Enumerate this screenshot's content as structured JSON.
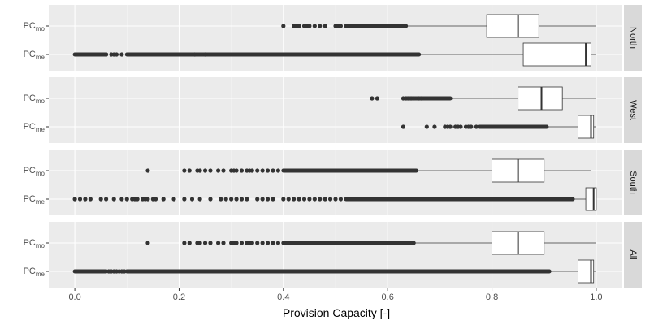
{
  "chart_data": {
    "type": "boxplot",
    "orientation": "horizontal",
    "title": "",
    "xlabel": "Provision Capacity [-]",
    "ylabel": "",
    "xlim": [
      -0.05,
      1.05
    ],
    "x_ticks": [
      0.0,
      0.2,
      0.4,
      0.6,
      0.8,
      1.0
    ],
    "x_tick_labels": [
      "0.0",
      "0.2",
      "0.4",
      "0.6",
      "0.8",
      "1.0"
    ],
    "grid": true,
    "colors": {
      "panel_bg": "#ebebeb",
      "grid_major": "#ffffff",
      "strip_bg": "#d9d9d9",
      "box_fill": "#ffffff",
      "box_stroke": "#333333",
      "outlier": "#333333"
    },
    "categories": [
      {
        "main": "PC",
        "sub": "mo"
      },
      {
        "main": "PC",
        "sub": "me"
      }
    ],
    "panels": [
      {
        "label": "North",
        "boxes": [
          {
            "name": "PC_mo",
            "q1": 0.79,
            "median": 0.85,
            "q3": 0.89,
            "whisker_low": 0.635,
            "whisker_high": 1.0,
            "outliers": [
              0.4,
              0.42,
              0.425,
              0.43,
              0.44,
              0.445,
              0.45,
              0.46,
              0.47,
              0.48,
              0.5,
              0.505,
              0.51
            ],
            "outlier_bands": [
              [
                0.52,
                0.635
              ]
            ]
          },
          {
            "name": "PC_me",
            "q1": 0.86,
            "median": 0.98,
            "q3": 0.99,
            "whisker_low": 0.66,
            "whisker_high": 1.0,
            "outliers": [
              0.06,
              0.07,
              0.075,
              0.08,
              0.09,
              0.23,
              0.25
            ],
            "outlier_bands": [
              [
                0.0,
                0.06
              ],
              [
                0.1,
                0.66
              ]
            ]
          }
        ]
      },
      {
        "label": "West",
        "boxes": [
          {
            "name": "PC_mo",
            "q1": 0.85,
            "median": 0.895,
            "q3": 0.935,
            "whisker_low": 0.72,
            "whisker_high": 1.0,
            "outliers": [
              0.57,
              0.58,
              0.63,
              0.635,
              0.64,
              0.645,
              0.65,
              0.66,
              0.665
            ],
            "outlier_bands": [
              [
                0.635,
                0.72
              ]
            ]
          },
          {
            "name": "PC_me",
            "q1": 0.965,
            "median": 0.99,
            "q3": 0.995,
            "whisker_low": 0.905,
            "whisker_high": 1.0,
            "outliers": [
              0.63,
              0.675,
              0.69,
              0.71,
              0.715,
              0.72,
              0.73,
              0.735,
              0.74,
              0.75,
              0.755,
              0.76,
              0.77
            ],
            "outlier_bands": [
              [
                0.775,
                0.905
              ]
            ]
          }
        ]
      },
      {
        "label": "South",
        "boxes": [
          {
            "name": "PC_mo",
            "q1": 0.8,
            "median": 0.85,
            "q3": 0.9,
            "whisker_low": 0.655,
            "whisker_high": 0.99,
            "outliers": [
              0.14,
              0.21,
              0.22,
              0.235,
              0.24,
              0.25,
              0.26,
              0.275,
              0.285,
              0.3,
              0.305,
              0.31,
              0.32,
              0.33,
              0.335,
              0.34,
              0.35,
              0.36,
              0.37,
              0.38,
              0.39
            ],
            "outlier_bands": [
              [
                0.4,
                0.655
              ]
            ]
          },
          {
            "name": "PC_me",
            "q1": 0.98,
            "median": 0.995,
            "q3": 1.0,
            "whisker_low": 0.955,
            "whisker_high": 1.0,
            "outliers": [
              0.0,
              0.01,
              0.02,
              0.03,
              0.05,
              0.06,
              0.075,
              0.09,
              0.1,
              0.11,
              0.115,
              0.12,
              0.13,
              0.135,
              0.14,
              0.15,
              0.155,
              0.17,
              0.19,
              0.21,
              0.225,
              0.24,
              0.26,
              0.28,
              0.29,
              0.3,
              0.31,
              0.32,
              0.33,
              0.35,
              0.36,
              0.37,
              0.38,
              0.4,
              0.41,
              0.42,
              0.43,
              0.44,
              0.45,
              0.46,
              0.47,
              0.48,
              0.49,
              0.5,
              0.51
            ],
            "outlier_bands": [
              [
                0.52,
                0.955
              ]
            ]
          }
        ]
      },
      {
        "label": "All",
        "boxes": [
          {
            "name": "PC_mo",
            "q1": 0.8,
            "median": 0.85,
            "q3": 0.9,
            "whisker_low": 0.65,
            "whisker_high": 1.0,
            "outliers": [
              0.14,
              0.21,
              0.22,
              0.235,
              0.24,
              0.25,
              0.26,
              0.275,
              0.285,
              0.3,
              0.305,
              0.31,
              0.32,
              0.33,
              0.335,
              0.34,
              0.35,
              0.36,
              0.37,
              0.38,
              0.39
            ],
            "outlier_bands": [
              [
                0.4,
                0.65
              ]
            ]
          },
          {
            "name": "PC_me",
            "q1": 0.965,
            "median": 0.99,
            "q3": 0.995,
            "whisker_low": 0.91,
            "whisker_high": 1.0,
            "outliers": [
              0.065,
              0.07,
              0.075,
              0.08,
              0.085,
              0.09,
              0.095
            ],
            "outlier_bands": [
              [
                0.0,
                0.06
              ],
              [
                0.1,
                0.91
              ]
            ]
          }
        ]
      }
    ]
  }
}
